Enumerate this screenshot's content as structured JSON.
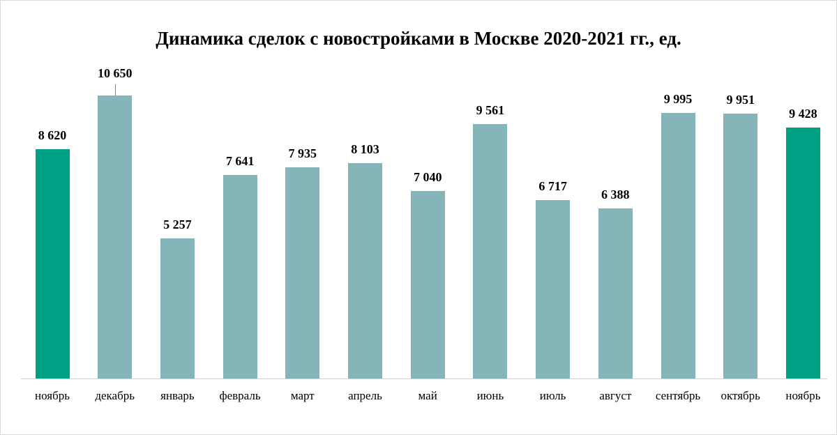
{
  "chart_data": {
    "type": "bar",
    "title": "Динамика сделок с новостройками в Москве 2020-2021 гг., ед.",
    "xlabel": "",
    "ylabel": "",
    "categories": [
      "ноябрь",
      "декабрь",
      "январь",
      "февраль",
      "март",
      "апрель",
      "май",
      "июнь",
      "июль",
      "август",
      "сентябрь",
      "октябрь",
      "ноябрь"
    ],
    "values": [
      8620,
      10650,
      5257,
      7641,
      7935,
      8103,
      7040,
      9561,
      6717,
      6388,
      9995,
      9951,
      9428
    ],
    "value_labels": [
      "8 620",
      "10 650",
      "5 257",
      "7 641",
      "7 935",
      "8 103",
      "7 040",
      "9 561",
      "6 717",
      "6 388",
      "9 995",
      "9 951",
      "9 428"
    ],
    "highlighted": [
      true,
      false,
      false,
      false,
      false,
      false,
      false,
      false,
      false,
      false,
      false,
      false,
      true
    ],
    "colors": {
      "highlight": "#00a085",
      "default": "#85b5b9",
      "axis": "#d0d0d0"
    },
    "grid": false,
    "legend": "none",
    "ylim": [
      0,
      10650
    ]
  }
}
